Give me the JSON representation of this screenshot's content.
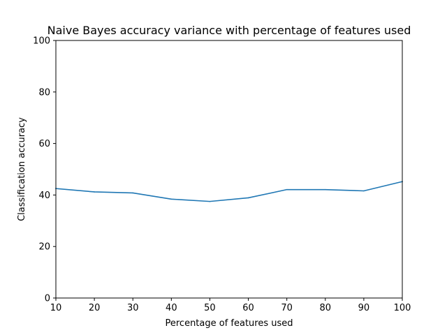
{
  "chart_data": {
    "type": "line",
    "title": "Naive Bayes accuracy variance with percentage of features used",
    "xlabel": "Percentage of features used",
    "ylabel": "Classification accuracy",
    "x": [
      10,
      20,
      30,
      40,
      50,
      60,
      70,
      80,
      90,
      100
    ],
    "xlim": [
      10,
      100
    ],
    "ylim": [
      0,
      100
    ],
    "xticks": [
      10,
      20,
      30,
      40,
      50,
      60,
      70,
      80,
      90,
      100
    ],
    "yticks": [
      0,
      20,
      40,
      60,
      80,
      100
    ],
    "series": [
      {
        "values": [
          42.5,
          41.2,
          40.8,
          38.4,
          37.5,
          38.9,
          42.1,
          42.1,
          41.6,
          45.2
        ],
        "color": "#1f77b4"
      }
    ],
    "grid": false,
    "legend": "none"
  }
}
